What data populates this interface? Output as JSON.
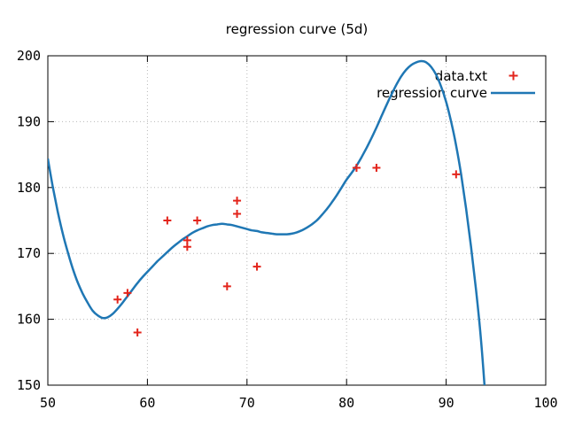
{
  "figure": {
    "title": "regression curve (5d)"
  },
  "colors": {
    "background": "#ffffff",
    "points": "#e3241b",
    "curve": "#1f77b4",
    "grid": "#b8b8b8",
    "border": "#000000",
    "text": "#000000"
  },
  "chart_data": {
    "type": "scatter",
    "title": "regression curve (5d)",
    "xlabel": "",
    "ylabel": "",
    "xlim": [
      50,
      100
    ],
    "ylim": [
      150,
      200
    ],
    "xticks": [
      50,
      60,
      70,
      80,
      90,
      100
    ],
    "yticks": [
      150,
      160,
      170,
      180,
      190,
      200
    ],
    "grid": true,
    "legend_position": "top-right-inside",
    "series": [
      {
        "name": "data.txt",
        "type": "scatter",
        "marker": "plus",
        "color": "#e3241b",
        "points": [
          [
            57,
            163
          ],
          [
            58,
            164
          ],
          [
            59,
            158
          ],
          [
            62,
            175
          ],
          [
            64,
            171
          ],
          [
            64,
            172
          ],
          [
            65,
            175
          ],
          [
            68,
            165
          ],
          [
            69,
            176
          ],
          [
            69,
            178
          ],
          [
            71,
            168
          ],
          [
            81,
            183
          ],
          [
            83,
            183
          ],
          [
            91,
            182
          ]
        ]
      },
      {
        "name": "regression curve",
        "type": "line",
        "color": "#1f77b4",
        "points": [
          [
            50,
            184.4
          ],
          [
            50.5,
            180.1
          ],
          [
            51,
            176.3
          ],
          [
            51.5,
            173.0
          ],
          [
            52,
            170.2
          ],
          [
            52.5,
            167.7
          ],
          [
            53,
            165.6
          ],
          [
            53.5,
            163.9
          ],
          [
            54,
            162.5
          ],
          [
            54.5,
            161.3
          ],
          [
            55,
            160.6
          ],
          [
            55.5,
            160.2
          ],
          [
            56,
            160.3
          ],
          [
            56.5,
            160.8
          ],
          [
            57,
            161.6
          ],
          [
            57.5,
            162.5
          ],
          [
            58,
            163.5
          ],
          [
            58.5,
            164.5
          ],
          [
            59,
            165.5
          ],
          [
            59.5,
            166.4
          ],
          [
            60,
            167.2
          ],
          [
            60.5,
            168.0
          ],
          [
            61,
            168.8
          ],
          [
            61.5,
            169.5
          ],
          [
            62,
            170.2
          ],
          [
            62.5,
            170.9
          ],
          [
            63,
            171.5
          ],
          [
            63.5,
            172.1
          ],
          [
            64,
            172.6
          ],
          [
            64.5,
            173.1
          ],
          [
            65,
            173.5
          ],
          [
            65.5,
            173.8
          ],
          [
            66,
            174.1
          ],
          [
            66.5,
            174.3
          ],
          [
            67,
            174.4
          ],
          [
            67.5,
            174.5
          ],
          [
            68,
            174.4
          ],
          [
            68.5,
            174.3
          ],
          [
            69,
            174.1
          ],
          [
            69.5,
            173.9
          ],
          [
            70,
            173.7
          ],
          [
            70.5,
            173.5
          ],
          [
            71,
            173.4
          ],
          [
            71.5,
            173.2
          ],
          [
            72,
            173.1
          ],
          [
            72.5,
            173.0
          ],
          [
            73,
            172.9
          ],
          [
            73.5,
            172.9
          ],
          [
            74,
            172.9
          ],
          [
            74.5,
            173.0
          ],
          [
            75,
            173.2
          ],
          [
            75.5,
            173.5
          ],
          [
            76,
            173.9
          ],
          [
            76.5,
            174.4
          ],
          [
            77,
            175.0
          ],
          [
            77.5,
            175.8
          ],
          [
            78,
            176.7
          ],
          [
            78.5,
            177.7
          ],
          [
            79,
            178.8
          ],
          [
            79.5,
            180.0
          ],
          [
            80,
            181.2
          ],
          [
            80.5,
            182.2
          ],
          [
            81,
            183.3
          ],
          [
            81.5,
            184.6
          ],
          [
            82,
            186.0
          ],
          [
            82.5,
            187.5
          ],
          [
            83,
            189.1
          ],
          [
            83.5,
            190.8
          ],
          [
            84,
            192.5
          ],
          [
            84.5,
            194.1
          ],
          [
            85,
            195.6
          ],
          [
            85.5,
            196.9
          ],
          [
            86,
            197.9
          ],
          [
            86.5,
            198.6
          ],
          [
            87,
            199.0
          ],
          [
            87.5,
            199.2
          ],
          [
            88,
            199.0
          ],
          [
            88.5,
            198.3
          ],
          [
            89,
            197.1
          ],
          [
            89.5,
            195.3
          ],
          [
            90,
            193.0
          ],
          [
            90.5,
            190.0
          ],
          [
            91,
            186.4
          ],
          [
            91.5,
            182.0
          ],
          [
            92,
            176.8
          ],
          [
            92.5,
            171.0
          ],
          [
            93,
            164.5
          ],
          [
            93.5,
            156.9
          ],
          [
            93.9,
            149.0
          ]
        ]
      }
    ]
  }
}
